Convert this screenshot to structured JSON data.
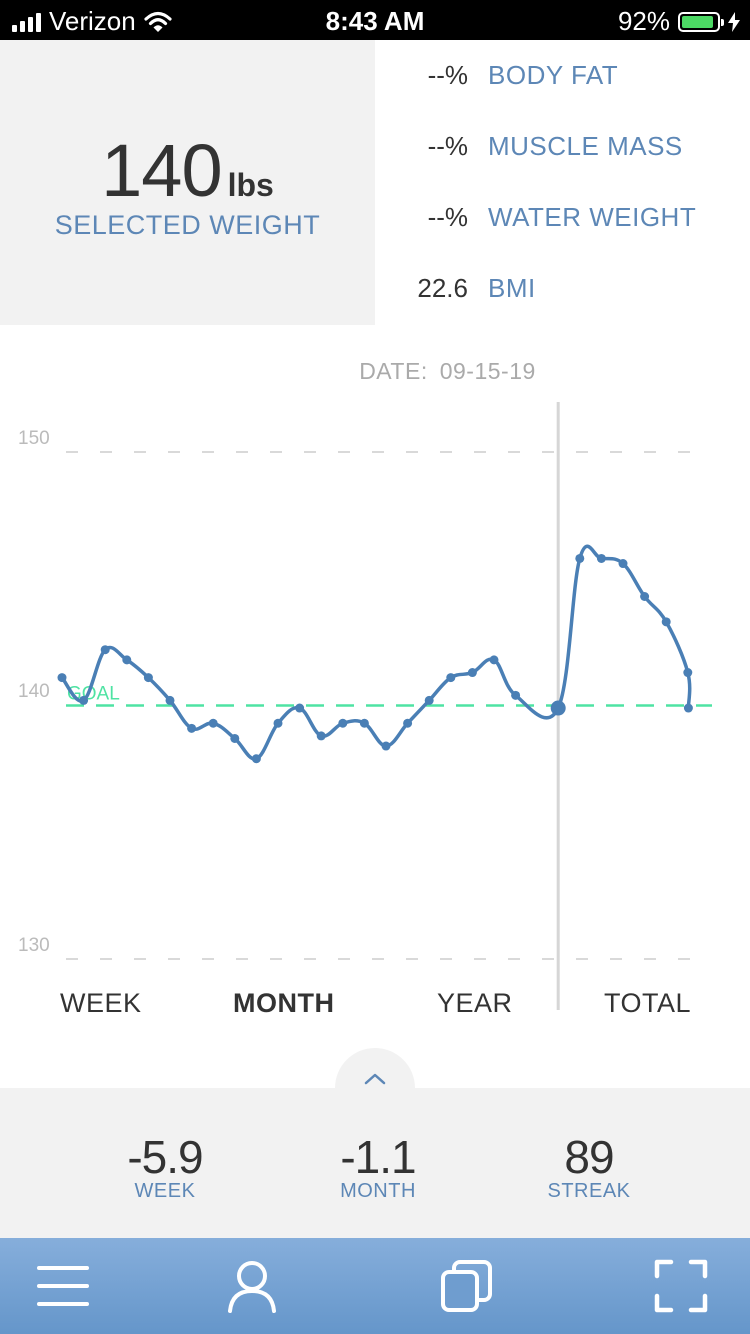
{
  "status": {
    "carrier": "Verizon",
    "time": "8:43 AM",
    "battery": "92%",
    "battery_level": 0.92
  },
  "selected": {
    "weight": "140",
    "unit": "lbs",
    "label": "SELECTED WEIGHT"
  },
  "metrics": [
    {
      "value": "--%",
      "label": "BODY FAT"
    },
    {
      "value": "--%",
      "label": "MUSCLE MASS"
    },
    {
      "value": "--%",
      "label": "WATER WEIGHT"
    },
    {
      "value": "22.6",
      "label": "BMI"
    }
  ],
  "date": {
    "label": "DATE:",
    "value": "09-15-19"
  },
  "chart_data": {
    "type": "line",
    "ylim": [
      130,
      150
    ],
    "y_ticks": [
      "150",
      "140",
      "130"
    ],
    "grid": "dashed horizontal",
    "goal": {
      "label": "GOAL",
      "value": 140
    },
    "selected_index": 22,
    "series": [
      {
        "values": [
          141.1,
          140.2,
          142.2,
          141.8,
          141.1,
          140.2,
          139.1,
          139.3,
          138.7,
          137.9,
          139.3,
          139.9,
          138.8,
          139.3,
          139.3,
          138.4,
          139.3,
          140.2,
          141.1,
          141.3,
          141.8,
          140.4,
          139.9,
          145.8,
          145.8,
          145.6,
          144.3,
          143.3,
          141.3,
          139.9
        ]
      }
    ],
    "colors": {
      "line": "#4a7fb5",
      "goal": "#4ee3a3",
      "cursor": "#d6d6d6"
    }
  },
  "ranges": [
    "WEEK",
    "MONTH",
    "YEAR",
    "TOTAL"
  ],
  "active_range": "MONTH",
  "stats": [
    {
      "value": "-5.9",
      "label": "WEEK"
    },
    {
      "value": "-1.1",
      "label": "MONTH"
    },
    {
      "value": "89",
      "label": "STREAK"
    }
  ],
  "tabbar": {
    "icons": [
      "menu-icon",
      "profile-icon",
      "copy-icon",
      "fullscreen-icon"
    ]
  },
  "colors": {
    "accent": "#5d87b6",
    "tabbar": "#76a3d3",
    "panel": "#f2f2f2"
  }
}
